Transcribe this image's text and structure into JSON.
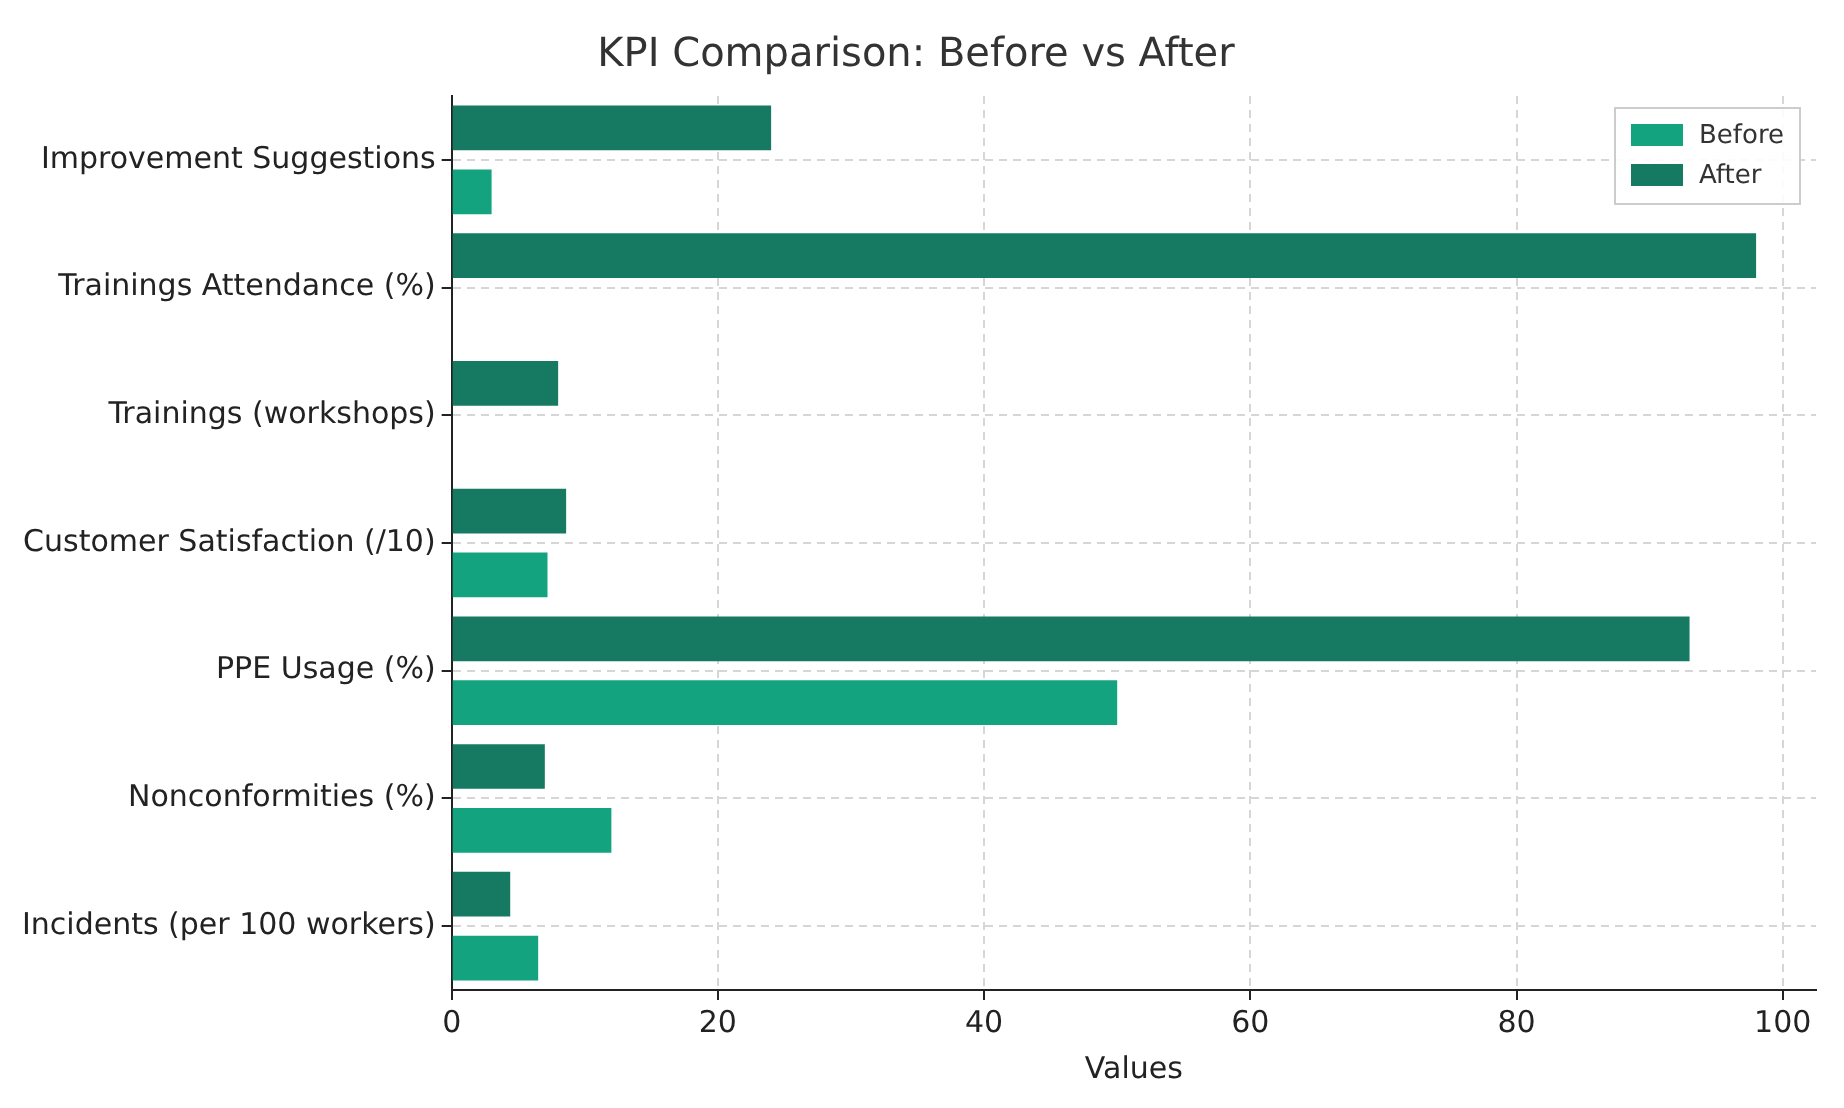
{
  "chart_data": {
    "type": "bar",
    "orientation": "horizontal",
    "title": "KPI Comparison: Before vs After",
    "xlabel": "Values",
    "categories": [
      "Improvement Suggestions",
      "Trainings Attendance (%)",
      "Trainings (workshops)",
      "Customer Satisfaction (/10)",
      "PPE Usage (%)",
      "Nonconformities (%)",
      "Incidents (per 100 workers)"
    ],
    "series": [
      {
        "name": "Before",
        "color": "#13a37f",
        "values": [
          3,
          0,
          0,
          7.2,
          50,
          12,
          6.5
        ]
      },
      {
        "name": "After",
        "color": "#167a62",
        "values": [
          24,
          98,
          8,
          8.6,
          93,
          7,
          4.4
        ]
      }
    ],
    "xlim": [
      0,
      102.5
    ],
    "xticks": [
      0,
      20,
      40,
      60,
      80,
      100
    ],
    "grid": true,
    "legend": "top right"
  }
}
